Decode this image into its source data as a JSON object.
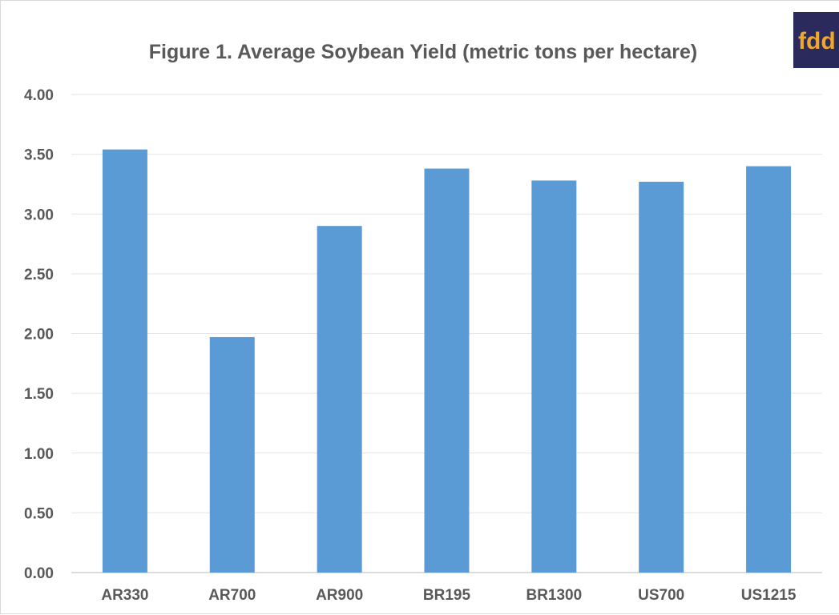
{
  "chart_data": {
    "type": "bar",
    "title": "Figure 1. Average Soybean Yield (metric tons per hectare)",
    "categories": [
      "AR330",
      "AR700",
      "AR900",
      "BR195",
      "BR1300",
      "US700",
      "US1215"
    ],
    "values": [
      3.54,
      1.97,
      2.9,
      3.38,
      3.28,
      3.27,
      3.4
    ],
    "ylim": [
      0,
      4
    ],
    "yticks": [
      "0.00",
      "0.50",
      "1.00",
      "1.50",
      "2.00",
      "2.50",
      "3.00",
      "3.50",
      "4.00"
    ],
    "ytick_values": [
      0,
      0.5,
      1,
      1.5,
      2,
      2.5,
      3,
      3.5,
      4
    ],
    "xlabel": "",
    "ylabel": "",
    "grid": true,
    "legend": "none",
    "bar_color": "#5b9bd5",
    "grid_color": "#e6e6e6"
  },
  "logo": {
    "text": "fdd",
    "background": "#2b2a5c",
    "color": "#f0a82a"
  }
}
